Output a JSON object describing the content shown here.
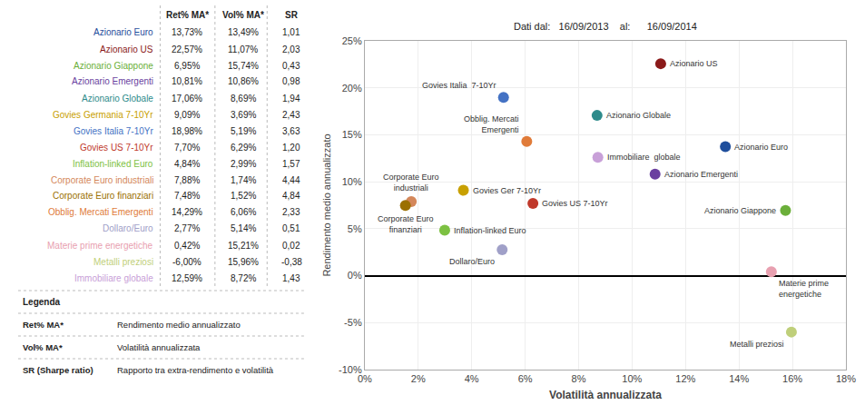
{
  "chart_data": {
    "type": "scatter",
    "subtitle": "Dati dal:   16/09/2013    al:      16/09/2014",
    "x_label": "Volatilità annualizzata",
    "y_label": "Rendimento medio annualizzato",
    "xlim": [
      0,
      18
    ],
    "xticks": [
      {
        "value": 0,
        "label": "0%"
      },
      {
        "value": 2,
        "label": "2%"
      },
      {
        "value": 4,
        "label": "4%"
      },
      {
        "value": 6,
        "label": "6%"
      },
      {
        "value": 8,
        "label": "8%"
      },
      {
        "value": 10,
        "label": "10%"
      },
      {
        "value": 12,
        "label": "12%"
      },
      {
        "value": 14,
        "label": "14%"
      },
      {
        "value": 16,
        "label": "16%"
      },
      {
        "value": 18,
        "label": "18%"
      }
    ],
    "ylim": [
      -10,
      25
    ],
    "yticks": [
      {
        "value": -10,
        "label": "-10%"
      },
      {
        "value": -5,
        "label": "-5%"
      },
      {
        "value": 0,
        "label": "0%"
      },
      {
        "value": 5,
        "label": "5%"
      },
      {
        "value": 10,
        "label": "10%"
      },
      {
        "value": 15,
        "label": "15%"
      },
      {
        "value": 20,
        "label": "20%"
      },
      {
        "value": 25,
        "label": "25%"
      }
    ],
    "grid": true,
    "series": [
      {
        "name": "Azionario Euro",
        "color": "#1F4E9C",
        "x": [
          13.49
        ],
        "values": [
          13.73
        ],
        "point_labels": [
          "Azionario Euro"
        ]
      },
      {
        "name": "Azionario US",
        "color": "#8B1A1A",
        "x": [
          11.07
        ],
        "values": [
          22.57
        ],
        "point_labels": [
          "Azionario US"
        ]
      },
      {
        "name": "Azionario Giappone",
        "color": "#6BAF3A",
        "x": [
          15.74
        ],
        "values": [
          6.95
        ],
        "point_labels": [
          "Azionario Giappone"
        ]
      },
      {
        "name": "Azionario Emergenti",
        "color": "#6A3FA0",
        "x": [
          10.86
        ],
        "values": [
          10.81
        ],
        "point_labels": [
          "Azionario Emergenti"
        ]
      },
      {
        "name": "Azionario Globale",
        "color": "#2E8B8B",
        "x": [
          8.69
        ],
        "values": [
          17.06
        ],
        "point_labels": [
          "Azionario Globale"
        ]
      },
      {
        "name": "Govies Germania 7-10Yr",
        "color": "#C8A000",
        "x": [
          3.69
        ],
        "values": [
          9.09
        ],
        "point_labels": [
          "Govies Ger 7-10Yr"
        ]
      },
      {
        "name": "Govies Italia 7-10Yr",
        "color": "#4472C4",
        "x": [
          5.19
        ],
        "values": [
          18.98
        ],
        "point_labels": [
          "Govies Italia  7-10Yr"
        ]
      },
      {
        "name": "Govies US 7-10Yr",
        "color": "#C0392B",
        "x": [
          6.29
        ],
        "values": [
          7.7
        ],
        "point_labels": [
          "Govies US 7-10Yr"
        ]
      },
      {
        "name": "Inflation-linked Euro",
        "color": "#7DC142",
        "x": [
          2.99
        ],
        "values": [
          4.84
        ],
        "point_labels": [
          "Inflation-linked Euro"
        ]
      },
      {
        "name": "Corporate Euro industriali",
        "color": "#D4875A",
        "x": [
          1.74
        ],
        "values": [
          7.88
        ],
        "point_labels": [
          "Corporate Euro\nindustriali"
        ]
      },
      {
        "name": "Corporate Euro finanziari",
        "color": "#9B7000",
        "x": [
          1.52
        ],
        "values": [
          7.48
        ],
        "point_labels": [
          "Corporate Euro\nfinanziari"
        ]
      },
      {
        "name": "Obblig. Mercati Emergenti",
        "color": "#E07B39",
        "x": [
          6.06
        ],
        "values": [
          14.29
        ],
        "point_labels": [
          "Obblig. Mercati\nEmergenti"
        ]
      },
      {
        "name": "Dollaro/Euro",
        "color": "#A0A0C8",
        "x": [
          5.14
        ],
        "values": [
          2.77
        ],
        "point_labels": [
          "Dollaro/Euro"
        ]
      },
      {
        "name": "Materie prime energetiche",
        "color": "#E8A0B0",
        "x": [
          15.21
        ],
        "values": [
          0.42
        ],
        "point_labels": [
          "Materie prime\nenergetiche"
        ]
      },
      {
        "name": "Metalli preziosi",
        "color": "#BFCF7A",
        "x": [
          15.96
        ],
        "values": [
          -6.0
        ],
        "point_labels": [
          "Metalli preziosi"
        ]
      },
      {
        "name": "Immobiliare globale",
        "color": "#C8A0D8",
        "x": [
          8.72
        ],
        "values": [
          12.59
        ],
        "point_labels": [
          "Immobiliare  globale"
        ]
      }
    ],
    "table": {
      "columns": [
        "Ret% MA*",
        "Vol% MA*",
        "SR"
      ],
      "rows": [
        {
          "name": "Azionario Euro",
          "color": "#1F4E9C",
          "cells": [
            "13,73%",
            "13,49%",
            "1,01"
          ]
        },
        {
          "name": "Azionario US",
          "color": "#8B1A1A",
          "cells": [
            "22,57%",
            "11,07%",
            "2,03"
          ]
        },
        {
          "name": "Azionario Giappone",
          "color": "#6BAF3A",
          "cells": [
            "6,95%",
            "15,74%",
            "0,43"
          ]
        },
        {
          "name": "Azionario Emergenti",
          "color": "#6A3FA0",
          "cells": [
            "10,81%",
            "10,86%",
            "0,98"
          ]
        },
        {
          "name": "Azionario Globale",
          "color": "#2E8B8B",
          "cells": [
            "17,06%",
            "8,69%",
            "1,94"
          ]
        },
        {
          "name": "Govies Germania 7-10Yr",
          "color": "#C8A000",
          "cells": [
            "9,09%",
            "3,69%",
            "2,43"
          ]
        },
        {
          "name": "Govies Italia 7-10Yr",
          "color": "#4472C4",
          "cells": [
            "18,98%",
            "5,19%",
            "3,63"
          ]
        },
        {
          "name": "Govies US 7-10Yr",
          "color": "#C0392B",
          "cells": [
            "7,70%",
            "6,29%",
            "1,20"
          ]
        },
        {
          "name": "Inflation-linked Euro",
          "color": "#7DC142",
          "cells": [
            "4,84%",
            "2,99%",
            "1,57"
          ]
        },
        {
          "name": "Corporate Euro industriali",
          "color": "#D4875A",
          "cells": [
            "7,88%",
            "1,74%",
            "4,44"
          ]
        },
        {
          "name": "Corporate Euro finanziari",
          "color": "#9B7000",
          "cells": [
            "7,48%",
            "1,52%",
            "4,84"
          ]
        },
        {
          "name": "Obblig. Mercati Emergenti",
          "color": "#E07B39",
          "cells": [
            "14,29%",
            "6,06%",
            "2,33"
          ]
        },
        {
          "name": "Dollaro/Euro",
          "color": "#A0A0C8",
          "cells": [
            "2,77%",
            "5,14%",
            "0,51"
          ]
        },
        {
          "name": "Materie prime energetiche",
          "color": "#E8A0B0",
          "cells": [
            "0,42%",
            "15,21%",
            "0,02"
          ]
        },
        {
          "name": "Metalli preziosi",
          "color": "#BFCF7A",
          "cells": [
            "-6,00%",
            "15,96%",
            "-0,38"
          ]
        },
        {
          "name": "Immobiliare globale",
          "color": "#C8A0D8",
          "cells": [
            "12,59%",
            "8,72%",
            "1,43"
          ]
        }
      ]
    },
    "notes": {
      "title": "Legenda",
      "items": [
        {
          "key": "Ret% MA*",
          "text": "Rendimento medio annualizzato"
        },
        {
          "key": "Vol% MA*",
          "text": "Volatilità annualizzata"
        },
        {
          "key": "SR (Sharpe ratio)",
          "text": "Rapporto tra extra-rendimento e volatilità"
        }
      ]
    }
  }
}
